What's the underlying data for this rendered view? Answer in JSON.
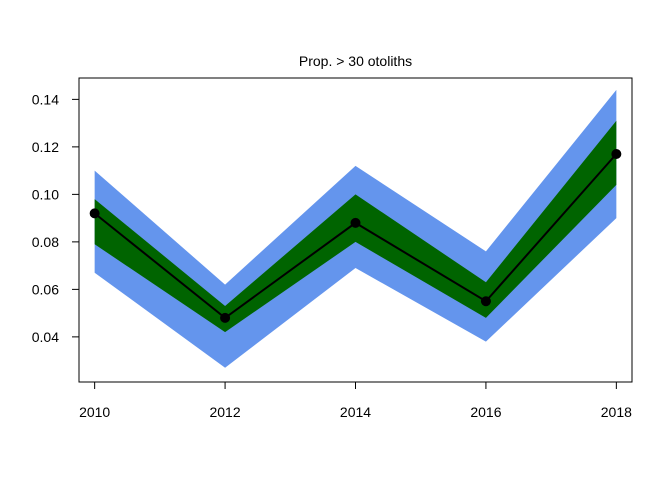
{
  "chart_data": {
    "type": "line",
    "title": "Prop. > 30 otoliths",
    "xlabel": "",
    "ylabel": "",
    "x": [
      2010,
      2012,
      2014,
      2016,
      2018
    ],
    "xlim": [
      2009.76,
      2018.24
    ],
    "ylim": [
      0.021,
      0.149
    ],
    "x_ticks": [
      "2010",
      "2012",
      "2014",
      "2016",
      "2018"
    ],
    "y_ticks": [
      "0.04",
      "0.06",
      "0.08",
      "0.10",
      "0.12",
      "0.14"
    ],
    "grid": false,
    "legend": "none",
    "series": [
      {
        "values": [
          0.092,
          0.048,
          0.088,
          0.055,
          0.117
        ]
      }
    ],
    "bands": [
      {
        "lower": [
          0.067,
          0.027,
          0.069,
          0.038,
          0.09
        ],
        "upper": [
          0.11,
          0.062,
          0.112,
          0.076,
          0.144
        ]
      },
      {
        "lower": [
          0.079,
          0.042,
          0.08,
          0.048,
          0.104
        ],
        "upper": [
          0.098,
          0.053,
          0.1,
          0.063,
          0.131
        ]
      }
    ],
    "colors": {
      "outer_band": "#6495ed",
      "inner_band": "#006400",
      "line": "#000000",
      "points": "#000000"
    }
  }
}
